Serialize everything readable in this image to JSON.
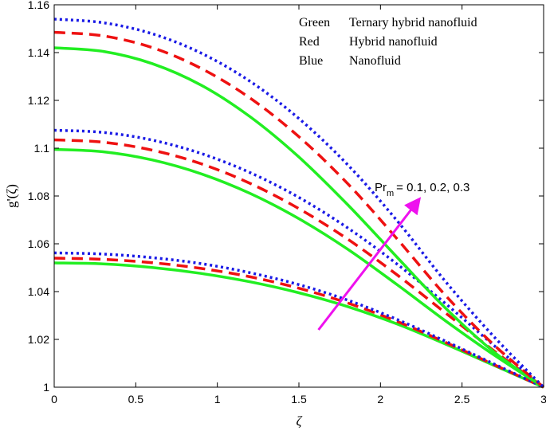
{
  "chart_data": {
    "type": "line",
    "title": "",
    "xlabel": "ζ",
    "ylabel": "g'(ζ)",
    "xlim": [
      0,
      3
    ],
    "ylim": [
      1,
      1.16
    ],
    "xticks": [
      0,
      0.5,
      1,
      1.5,
      2,
      2.5,
      3
    ],
    "xtick_labels": [
      "0",
      "0.5",
      "1",
      "1.5",
      "2",
      "2.5",
      "3"
    ],
    "yticks": [
      1,
      1.02,
      1.04,
      1.06,
      1.08,
      1.1,
      1.12,
      1.14,
      1.16
    ],
    "ytick_labels": [
      "1",
      "1.02",
      "1.04",
      "1.06",
      "1.08",
      "1.1",
      "1.12",
      "1.14",
      "1.16"
    ],
    "grid": false,
    "legend": {
      "placement": "top-right",
      "entries": [
        {
          "color_name": "Green",
          "description": "Ternary hybrid nanofluid"
        },
        {
          "color_name": "Red",
          "description": "Hybrid nanofluid"
        },
        {
          "color_name": "Blue",
          "description": "Nanofluid"
        }
      ]
    },
    "annotation": {
      "base": "Pr",
      "subscript": "m",
      "values": "= 0.1, 0.2, 0.3",
      "arrow_start": {
        "x": 1.62,
        "y": 1.024
      },
      "arrow_end": {
        "x": 2.23,
        "y": 1.078
      },
      "color": "#ee11ee"
    },
    "styles": {
      "green": {
        "color": "#22ee22",
        "dash": "solid"
      },
      "red": {
        "color": "#ee1111",
        "dash": "dashed"
      },
      "blue": {
        "color": "#1a1ae6",
        "dash": "dotted"
      }
    },
    "series": [
      {
        "name": "Green Pr_m=0.1",
        "style": "green",
        "x": [
          0,
          0.3,
          0.6,
          0.9,
          1.2,
          1.5,
          1.8,
          2.1,
          2.4,
          2.7,
          3.0
        ],
        "y": [
          1.052,
          1.0516,
          1.0501,
          1.0476,
          1.0441,
          1.0395,
          1.0337,
          1.0265,
          1.018,
          1.009,
          1.0
        ]
      },
      {
        "name": "Red Pr_m=0.1",
        "style": "red",
        "x": [
          0,
          0.3,
          0.6,
          0.9,
          1.2,
          1.5,
          1.8,
          2.1,
          2.4,
          2.7,
          3.0
        ],
        "y": [
          1.054,
          1.0535,
          1.0521,
          1.0497,
          1.0462,
          1.0414,
          1.0352,
          1.0276,
          1.0187,
          1.0093,
          1.0
        ]
      },
      {
        "name": "Blue Pr_m=0.1",
        "style": "blue",
        "x": [
          0,
          0.3,
          0.6,
          0.9,
          1.2,
          1.5,
          1.8,
          2.1,
          2.4,
          2.7,
          3.0
        ],
        "y": [
          1.0562,
          1.0557,
          1.0542,
          1.0517,
          1.0479,
          1.0429,
          1.0364,
          1.0284,
          1.0192,
          1.0096,
          1.0
        ]
      },
      {
        "name": "Green Pr_m=0.2",
        "style": "green",
        "x": [
          0,
          0.3,
          0.6,
          0.9,
          1.2,
          1.5,
          1.8,
          2.1,
          2.4,
          2.7,
          3.0
        ],
        "y": [
          1.0995,
          1.0985,
          1.0951,
          1.0893,
          1.0811,
          1.0705,
          1.0577,
          1.043,
          1.0277,
          1.0133,
          1.0
        ]
      },
      {
        "name": "Red Pr_m=0.2",
        "style": "red",
        "x": [
          0,
          0.3,
          0.6,
          0.9,
          1.2,
          1.5,
          1.8,
          2.1,
          2.4,
          2.7,
          3.0
        ],
        "y": [
          1.1035,
          1.1025,
          1.0992,
          1.0935,
          1.0853,
          1.0747,
          1.0619,
          1.0471,
          1.031,
          1.015,
          1.0
        ]
      },
      {
        "name": "Blue Pr_m=0.2",
        "style": "blue",
        "x": [
          0,
          0.3,
          0.6,
          0.9,
          1.2,
          1.5,
          1.8,
          2.1,
          2.4,
          2.7,
          3.0
        ],
        "y": [
          1.1075,
          1.1066,
          1.1034,
          1.0978,
          1.0898,
          1.0794,
          1.0666,
          1.0516,
          1.0349,
          1.0172,
          1.0
        ]
      },
      {
        "name": "Green Pr_m=0.3",
        "style": "green",
        "x": [
          0,
          0.3,
          0.6,
          0.9,
          1.2,
          1.5,
          1.8,
          2.1,
          2.4,
          2.7,
          3.0
        ],
        "y": [
          1.142,
          1.1405,
          1.1354,
          1.1264,
          1.1132,
          1.0963,
          1.0763,
          1.0545,
          1.033,
          1.0145,
          1.0
        ]
      },
      {
        "name": "Red Pr_m=0.3",
        "style": "red",
        "x": [
          0,
          0.3,
          0.6,
          0.9,
          1.2,
          1.5,
          1.8,
          2.1,
          2.4,
          2.7,
          3.0
        ],
        "y": [
          1.1485,
          1.147,
          1.1421,
          1.1334,
          1.121,
          1.1048,
          1.0851,
          1.0622,
          1.0383,
          1.0174,
          1.0
        ]
      },
      {
        "name": "Blue Pr_m=0.3",
        "style": "blue",
        "x": [
          0,
          0.3,
          0.6,
          0.9,
          1.2,
          1.5,
          1.8,
          2.1,
          2.4,
          2.7,
          3.0
        ],
        "y": [
          1.154,
          1.1525,
          1.1479,
          1.1398,
          1.128,
          1.1124,
          1.093,
          1.0698,
          1.0441,
          1.0208,
          1.0
        ]
      }
    ]
  }
}
